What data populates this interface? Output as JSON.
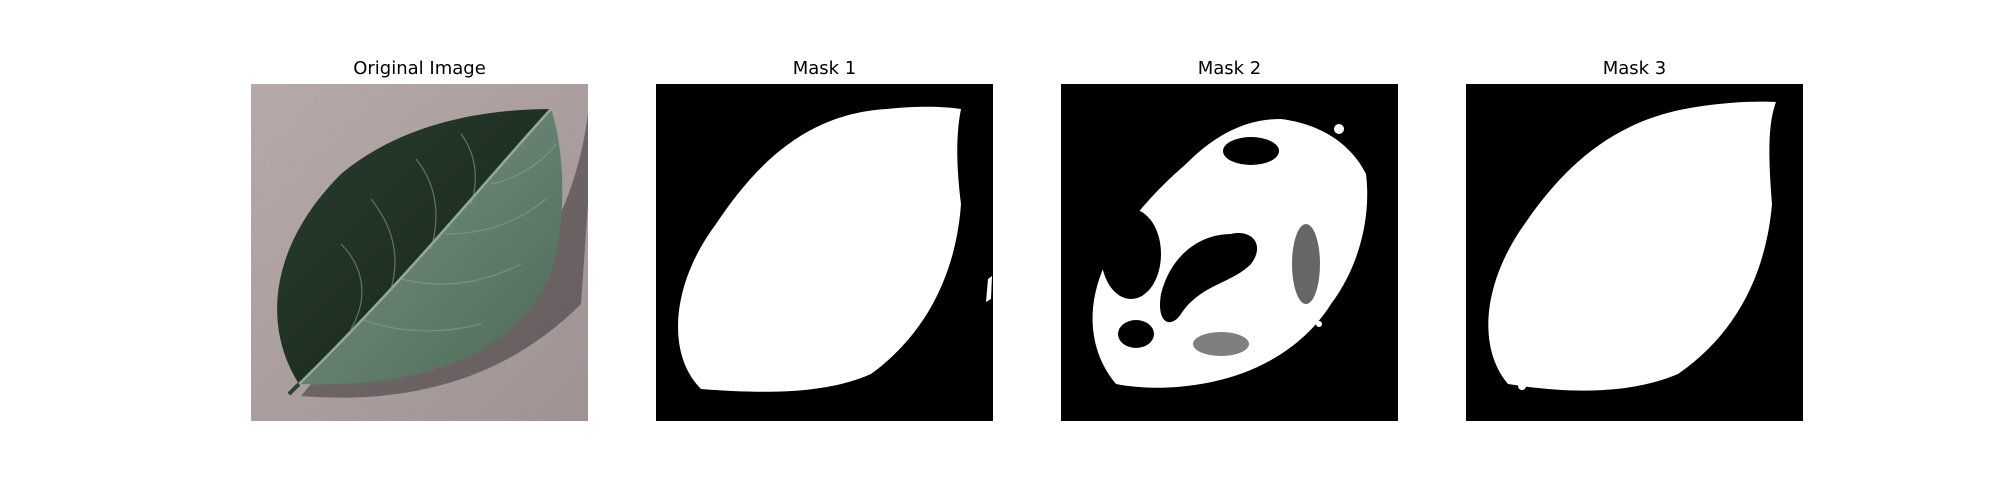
{
  "figure": {
    "panels": [
      {
        "title": "Original Image"
      },
      {
        "title": "Mask 1"
      },
      {
        "title": "Mask 2"
      },
      {
        "title": "Mask 3"
      }
    ]
  },
  "colors": {
    "mask_background": "#000000",
    "mask_foreground": "#ffffff",
    "photo_background": "#a89b9c",
    "leaf_dark": "#1f3324",
    "leaf_light": "#5e7a68"
  }
}
